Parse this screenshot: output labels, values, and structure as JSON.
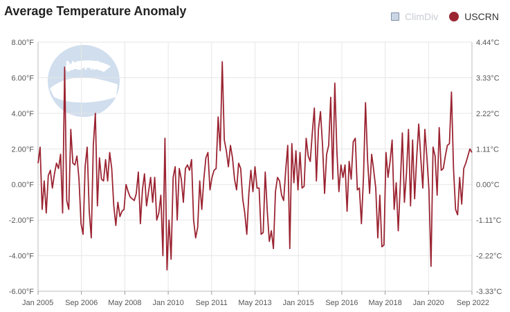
{
  "title": "Average Temperature Anomaly",
  "legend": [
    {
      "label": "ClimDiv",
      "color": "#c9d6e6",
      "state": "hidden"
    },
    {
      "label": "USCRN",
      "color": "#9b2432",
      "state": "visible"
    }
  ],
  "chart_data": {
    "type": "line",
    "title": "Average Temperature Anomaly",
    "xlabel": "",
    "ylabel": "",
    "ylim": [
      -6.0,
      8.0
    ],
    "y2lim": [
      -3.33,
      4.44
    ],
    "grid": true,
    "legend_position": "top-right",
    "x_ticks": [
      "Jan 2005",
      "Sep 2006",
      "May 2008",
      "Jan 2010",
      "Sep 2011",
      "May 2013",
      "Jan 2015",
      "Sep 2016",
      "May 2018",
      "Jan 2020",
      "Sep 2022"
    ],
    "y_ticks": [
      "-6.00°F",
      "-4.00°F",
      "-2.00°F",
      "0.00°F",
      "2.00°F",
      "4.00°F",
      "6.00°F",
      "8.00°F"
    ],
    "y2_ticks": [
      "-3.33°C",
      "-2.22°C",
      "-1.11°C",
      "0.00°C",
      "1.11°C",
      "2.22°C",
      "3.33°C",
      "4.44°C"
    ],
    "series": [
      {
        "name": "USCRN",
        "color": "#9b2432",
        "start": "Jan 2005",
        "values": [
          1.2,
          2.1,
          -1.4,
          0.2,
          -1.6,
          0.5,
          0.8,
          -0.2,
          0.6,
          1.2,
          0.9,
          1.7,
          -1.6,
          6.6,
          -0.9,
          -1.4,
          3.1,
          1.2,
          1.1,
          1.6,
          0.3,
          -2.2,
          -2.8,
          1.0,
          2.1,
          -1.5,
          -3.0,
          2.2,
          4.0,
          -1.2,
          1.5,
          0.3,
          0.2,
          1.4,
          0.2,
          1.8,
          0.9,
          -1.2,
          -2.3,
          -1.0,
          -1.8,
          -1.5,
          -1.4,
          0.0,
          -0.4,
          -0.7,
          -0.8,
          -0.9,
          -0.5,
          0.7,
          -2.2,
          -0.3,
          0.6,
          -1.2,
          -0.4,
          0.4,
          -1.0,
          0.4,
          -2.0,
          -1.6,
          -0.6,
          -4.0,
          2.6,
          -4.8,
          -2.0,
          -4.2,
          0.4,
          1.0,
          -2.0,
          0.9,
          0.3,
          -1.0,
          0.9,
          1.1,
          0.8,
          1.4,
          -2.0,
          -3.0,
          -2.4,
          0.2,
          -1.4,
          0.3,
          1.5,
          1.8,
          -0.3,
          0.4,
          0.8,
          0.9,
          3.8,
          1.9,
          6.9,
          2.5,
          1.9,
          1.0,
          2.2,
          1.5,
          0.3,
          -0.3,
          1.2,
          0.9,
          -0.8,
          -1.6,
          -2.8,
          -0.5,
          0.8,
          -0.4,
          1.0,
          -0.2,
          -0.2,
          -2.8,
          -2.7,
          0.7,
          -1.5,
          -3.2,
          -2.6,
          -3.6,
          -0.4,
          0.4,
          0.2,
          -0.6,
          -0.9,
          0.8,
          2.2,
          -3.6,
          2.3,
          0.1,
          1.9,
          -0.3,
          1.8,
          -0.2,
          -0.1,
          2.6,
          1.6,
          1.3,
          2.9,
          4.3,
          0.2,
          3.1,
          4.1,
          2.2,
          -0.5,
          1.7,
          2.2,
          4.9,
          0.3,
          5.7,
          1.9,
          -0.4,
          1.1,
          0.4,
          1.1,
          -1.5,
          1.3,
          0.3,
          2.4,
          2.6,
          -0.3,
          -0.2,
          -2.2,
          0.4,
          4.6,
          1.4,
          -0.5,
          1.7,
          0.8,
          -0.2,
          -3.0,
          -0.6,
          -3.5,
          -3.4,
          1.8,
          0.4,
          1.3,
          2.5,
          -1.4,
          0.1,
          -2.6,
          0.0,
          2.9,
          -1.0,
          0.6,
          3.1,
          -1.2,
          2.5,
          -0.8,
          1.5,
          3.4,
          1.5,
          -0.2,
          3.1,
          1.5,
          -0.3,
          -4.6,
          2.1,
          1.6,
          -0.6,
          3.2,
          0.8,
          0.9,
          1.6,
          2.2,
          2.3,
          5.2,
          0.9,
          -1.4,
          -1.7,
          0.4,
          -1.1,
          0.9,
          1.2,
          1.6,
          2.0,
          1.8
        ]
      }
    ]
  }
}
